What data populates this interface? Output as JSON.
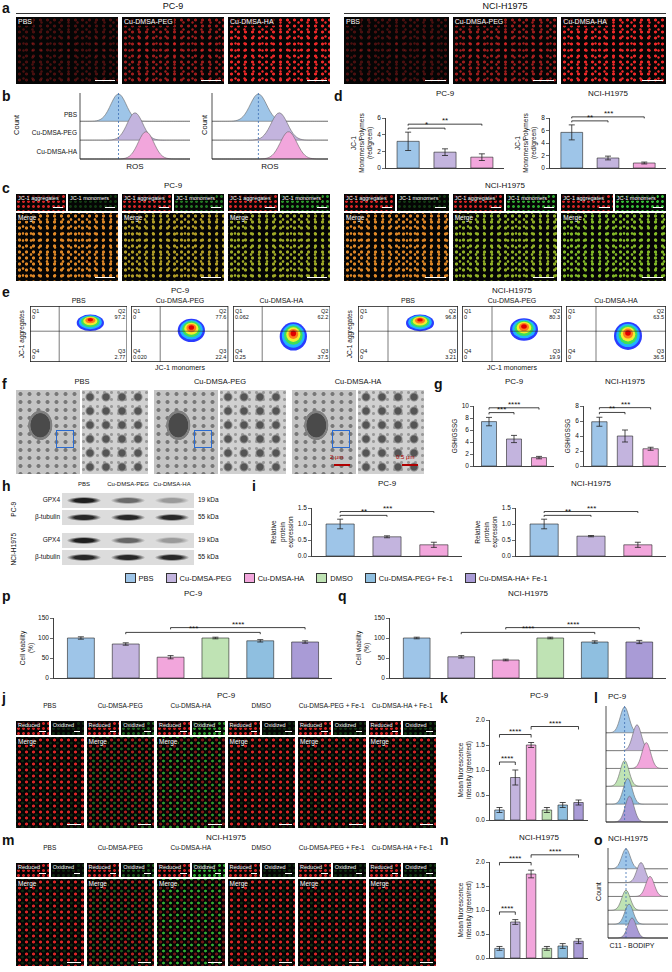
{
  "legend_key": [
    {
      "name": "PBS",
      "color": "#9ec5e8"
    },
    {
      "name": "Cu-DMSA-PEG",
      "color": "#c3b4de"
    },
    {
      "name": "Cu-DMSA-HA",
      "color": "#f2a6dc"
    },
    {
      "name": "DMSO",
      "color": "#bfe3b4"
    },
    {
      "name": "Cu-DMSA-PEG+ Fe-1",
      "color": "#8fbfe0"
    },
    {
      "name": "Cu-DMSA-HA+ Fe-1",
      "color": "#a99bd6"
    }
  ],
  "panels": {
    "a": {
      "letter": "a",
      "groups": [
        {
          "title": "PC-9",
          "images": [
            "PBS",
            "Cu-DMSA-PEG",
            "Cu-DMSA-HA"
          ]
        },
        {
          "title": "NCI-H1975",
          "images": [
            "PBS",
            "Cu-DMSA-PEG",
            "Cu-DMSA-HA"
          ]
        }
      ]
    },
    "b": {
      "letter": "b",
      "type": "ridgeline",
      "xlabel": "ROS",
      "ylabel": "Count",
      "plots": [
        {
          "curves": [
            {
              "name": "PBS",
              "color": "#9ec5e8",
              "peak": 0.35
            },
            {
              "name": "Cu-DMSA-PEG",
              "color": "#c3b4de",
              "peak": 0.5
            },
            {
              "name": "Cu-DMSA-HA",
              "color": "#f2a6dc",
              "peak": 0.6
            }
          ]
        },
        {
          "curves": [
            {
              "color": "#9ec5e8",
              "peak": 0.4
            },
            {
              "color": "#c3b4de",
              "peak": 0.58
            },
            {
              "color": "#f2a6dc",
              "peak": 0.66
            }
          ]
        }
      ]
    },
    "c": {
      "letter": "c",
      "channels": [
        "JC-1 aggregates",
        "JC-1 monomers"
      ],
      "merge": "Merge",
      "groups": [
        {
          "title": "PC-9",
          "images": 3
        },
        {
          "title": "NCI-H1975",
          "images": 3
        }
      ]
    },
    "e": {
      "letter": "e",
      "xlabel": "JC-1 monomers",
      "ylabel": "JC-1 aggregates",
      "groups": [
        {
          "title": "PC-9",
          "plots": [
            {
              "title": "PBS",
              "quadrants": [
                {
                  "label": "Q1",
                  "value": "0"
                },
                {
                  "label": "Q2",
                  "value": "97.2"
                },
                {
                  "label": "Q3",
                  "value": "2.77"
                },
                {
                  "label": "Q4",
                  "value": "0"
                }
              ]
            },
            {
              "title": "Cu-DMSA-PEG",
              "quadrants": [
                {
                  "label": "Q1",
                  "value": "0"
                },
                {
                  "label": "Q2",
                  "value": "77.6"
                },
                {
                  "label": "Q3",
                  "value": "22.4"
                },
                {
                  "label": "Q4",
                  "value": "0.020"
                }
              ]
            },
            {
              "title": "Cu-DMSA-HA",
              "quadrants": [
                {
                  "label": "Q1",
                  "value": "0.062"
                },
                {
                  "label": "Q2",
                  "value": "62.2"
                },
                {
                  "label": "Q3",
                  "value": "37.5"
                },
                {
                  "label": "Q4",
                  "value": "0.25"
                }
              ]
            }
          ]
        },
        {
          "title": "NCI-H1975",
          "plots": [
            {
              "title": "PBS",
              "quadrants": [
                {
                  "label": "Q1",
                  "value": "0"
                },
                {
                  "label": "Q2",
                  "value": "96.8"
                },
                {
                  "label": "Q3",
                  "value": "3.21"
                },
                {
                  "label": "Q4",
                  "value": "0"
                }
              ]
            },
            {
              "title": "Cu-DMSA-PEG",
              "quadrants": [
                {
                  "label": "Q1",
                  "value": "0"
                },
                {
                  "label": "Q2",
                  "value": "80.3"
                },
                {
                  "label": "Q3",
                  "value": "19.9"
                },
                {
                  "label": "Q4",
                  "value": "0"
                }
              ]
            },
            {
              "title": "Cu-DMSA-HA",
              "quadrants": [
                {
                  "label": "Q1",
                  "value": "0"
                },
                {
                  "label": "Q2",
                  "value": "63.5"
                },
                {
                  "label": "Q3",
                  "value": "36.5"
                },
                {
                  "label": "Q4",
                  "value": "0"
                }
              ]
            }
          ]
        }
      ]
    },
    "f": {
      "letter": "f",
      "images": [
        {
          "title": "PBS"
        },
        {
          "title": "Cu-DMSA-PEG"
        },
        {
          "title": "Cu-DMSA-HA",
          "scale_bars": [
            "2 μm",
            "0.5 μm"
          ]
        }
      ]
    },
    "h": {
      "letter": "h",
      "columns": [
        "PBS",
        "Cu-DMSA-PEG",
        "Cu-DMSA-HA"
      ],
      "groups": [
        {
          "title": "PC-9",
          "rows": [
            {
              "label": "GPX4",
              "size": "19 kDa"
            },
            {
              "label": "β-tubulin",
              "size": "55 kDa"
            }
          ]
        },
        {
          "title": "NCI-H1975",
          "rows": [
            {
              "label": "GPX4",
              "size": "19 kDa"
            },
            {
              "label": "β-tubulin",
              "size": "55 kDa"
            }
          ]
        }
      ]
    },
    "j": {
      "letter": "j",
      "title": "PC-9",
      "channels": [
        "Reduced",
        "Oxidized"
      ],
      "merge": "Merge",
      "conditions": [
        "PBS",
        "Cu-DMSA-PEG",
        "Cu-DMSA-HA",
        "DMSO",
        "Cu-DMSA-PEG + Fe-1",
        "Cu-DMSA-HA + Fe-1"
      ]
    },
    "m": {
      "letter": "m",
      "title": "NCI-H1975",
      "channels": [
        "Reduced",
        "Oxidized"
      ],
      "merge": "Merge",
      "conditions": [
        "PBS",
        "Cu-DMSA-PEG",
        "Cu-DMSA-HA",
        "DMSO",
        "Cu-DMSA-PEG + Fe-1",
        "Cu-DMSA-HA + Fe-1"
      ]
    },
    "l": {
      "letter": "l",
      "type": "ridgeline",
      "title": "PC-9",
      "curves": [
        {
          "color": "#9ec5e8",
          "peak": 0.3
        },
        {
          "color": "#c3b4de",
          "peak": 0.5
        },
        {
          "color": "#f2a6dc",
          "peak": 0.65
        },
        {
          "color": "#bfe3b4",
          "peak": 0.3
        },
        {
          "color": "#8fbfe0",
          "peak": 0.35
        },
        {
          "color": "#a99bd6",
          "peak": 0.38
        }
      ]
    },
    "o": {
      "letter": "o",
      "type": "ridgeline",
      "title": "NCI-H1975",
      "xlabel": "C11 - BODIPY",
      "ylabel": "Count",
      "curves": [
        {
          "color": "#9ec5e8",
          "peak": 0.3
        },
        {
          "color": "#c3b4de",
          "peak": 0.55
        },
        {
          "color": "#f2a6dc",
          "peak": 0.7
        },
        {
          "color": "#bfe3b4",
          "peak": 0.3
        },
        {
          "color": "#8fbfe0",
          "peak": 0.35
        },
        {
          "color": "#a99bd6",
          "peak": 0.4
        }
      ]
    }
  },
  "chart_data": [
    {
      "panel": "d",
      "type": "bar",
      "title": "PC-9",
      "ylabel": "JC-1 Monomers/Polymers (red/green)",
      "categories": [
        "PBS",
        "Cu-DMSA-PEG",
        "Cu-DMSA-HA"
      ],
      "values": [
        3.2,
        1.9,
        1.3
      ],
      "errors": [
        1.1,
        0.4,
        0.4
      ],
      "colors": [
        "#9ec5e8",
        "#c3b4de",
        "#f2a6dc"
      ],
      "ylim": [
        0,
        6
      ],
      "yticks": [
        0,
        2,
        4,
        6
      ],
      "tick_labels": "y",
      "significance": [
        {
          "from": 0,
          "to": 1,
          "text": "*"
        },
        {
          "from": 0,
          "to": 2,
          "text": "**"
        }
      ]
    },
    {
      "panel": "d",
      "type": "bar",
      "title": "NCI-H1975",
      "ylabel": "JC-1 Monomers/Polymers (red/green)",
      "categories": [
        "PBS",
        "Cu-DMSA-PEG",
        "Cu-DMSA-HA"
      ],
      "values": [
        5.7,
        1.6,
        0.8
      ],
      "errors": [
        1.2,
        0.3,
        0.15
      ],
      "colors": [
        "#9ec5e8",
        "#c3b4de",
        "#f2a6dc"
      ],
      "ylim": [
        0,
        8
      ],
      "yticks": [
        0,
        2,
        4,
        6,
        8
      ],
      "tick_labels": "y",
      "significance": [
        {
          "from": 0,
          "to": 1,
          "text": "**"
        },
        {
          "from": 0,
          "to": 2,
          "text": "***"
        }
      ]
    },
    {
      "panel": "g",
      "type": "bar",
      "title": "PC-9",
      "ylabel": "GSH/GSSG",
      "categories": [
        "PBS",
        "Cu-DMSA-PEG",
        "Cu-DMSA-HA"
      ],
      "values": [
        7.4,
        4.5,
        1.4
      ],
      "errors": [
        0.7,
        0.6,
        0.2
      ],
      "colors": [
        "#9ec5e8",
        "#c3b4de",
        "#f2a6dc"
      ],
      "ylim": [
        0,
        10
      ],
      "yticks": [
        0,
        2,
        4,
        6,
        8,
        10
      ],
      "tick_labels": "y",
      "significance": [
        {
          "from": 0,
          "to": 1,
          "text": "***"
        },
        {
          "from": 0,
          "to": 2,
          "text": "****"
        }
      ]
    },
    {
      "panel": "g",
      "type": "bar",
      "title": "NCI-H1975",
      "ylabel": "GSH/GSSG",
      "categories": [
        "PBS",
        "Cu-DMSA-PEG",
        "Cu-DMSA-HA"
      ],
      "values": [
        5.9,
        4.0,
        2.3
      ],
      "errors": [
        0.6,
        0.8,
        0.2
      ],
      "colors": [
        "#9ec5e8",
        "#c3b4de",
        "#f2a6dc"
      ],
      "ylim": [
        0,
        8
      ],
      "yticks": [
        0,
        2,
        4,
        6,
        8
      ],
      "tick_labels": "y",
      "significance": [
        {
          "from": 0,
          "to": 1,
          "text": "**"
        },
        {
          "from": 0,
          "to": 2,
          "text": "***"
        }
      ]
    },
    {
      "panel": "i",
      "type": "bar",
      "title": "PC-9",
      "ylabel": "Relative protein expression",
      "categories": [
        "PBS",
        "Cu-DMSA-PEG",
        "Cu-DMSA-HA"
      ],
      "values": [
        1.0,
        0.6,
        0.35
      ],
      "errors": [
        0.15,
        0.03,
        0.08
      ],
      "colors": [
        "#9ec5e8",
        "#c3b4de",
        "#f2a6dc"
      ],
      "ylim": [
        0,
        1.5
      ],
      "yticks": [
        {
          "value": 0,
          "label": "0.0"
        },
        0.5,
        {
          "value": 1,
          "label": "1.0"
        },
        1.5
      ],
      "tick_labels": "y",
      "significance": [
        {
          "from": 0,
          "to": 1,
          "text": "**"
        },
        {
          "from": 0,
          "to": 2,
          "text": "***"
        }
      ]
    },
    {
      "panel": "i",
      "type": "bar",
      "title": "NCI-H1975",
      "ylabel": "Relative protein expression",
      "categories": [
        "PBS",
        "Cu-DMSA-PEG",
        "Cu-DMSA-HA"
      ],
      "values": [
        1.0,
        0.62,
        0.35
      ],
      "errors": [
        0.15,
        0.02,
        0.08
      ],
      "colors": [
        "#9ec5e8",
        "#c3b4de",
        "#f2a6dc"
      ],
      "ylim": [
        0,
        1.5
      ],
      "yticks": [
        {
          "value": 0,
          "label": "0.0"
        },
        0.5,
        {
          "value": 1,
          "label": "1.0"
        },
        1.5
      ],
      "tick_labels": "y",
      "significance": [
        {
          "from": 0,
          "to": 1,
          "text": "**"
        },
        {
          "from": 0,
          "to": 2,
          "text": "***"
        }
      ]
    },
    {
      "panel": "p",
      "type": "bar",
      "title": "PC-9",
      "ylabel": "Cell viability (%)",
      "categories": [
        "PBS",
        "Cu-DMSA-PEG",
        "Cu-DMSA-HA",
        "DMSO",
        "Cu-DMSA-PEG+ Fe-1",
        "Cu-DMSA-HA+ Fe-1"
      ],
      "values": [
        100,
        85,
        52,
        100,
        93,
        90
      ],
      "errors": [
        3,
        3,
        4,
        2,
        3,
        3
      ],
      "colors": [
        "#9ec5e8",
        "#c3b4de",
        "#f2a6dc",
        "#bfe3b4",
        "#8fbfe0",
        "#a99bd6"
      ],
      "ylim": [
        0,
        150
      ],
      "yticks": [
        0,
        50,
        100,
        150
      ],
      "tick_labels": "y",
      "significance": [
        {
          "from": 1,
          "to": 4,
          "text": "***"
        },
        {
          "from": 2,
          "to": 5,
          "text": "****"
        }
      ]
    },
    {
      "panel": "q",
      "type": "bar",
      "title": "NCI-H1975",
      "ylabel": "Cell viability (%)",
      "categories": [
        "PBS",
        "Cu-DMSA-PEG",
        "Cu-DMSA-HA",
        "DMSO",
        "Cu-DMSA-PEG+ Fe-1",
        "Cu-DMSA-HA+ Fe-1"
      ],
      "values": [
        100,
        53,
        45,
        100,
        90,
        90
      ],
      "errors": [
        2,
        3,
        2,
        2,
        3,
        4
      ],
      "colors": [
        "#9ec5e8",
        "#c3b4de",
        "#f2a6dc",
        "#bfe3b4",
        "#8fbfe0",
        "#a99bd6"
      ],
      "ylim": [
        0,
        150
      ],
      "yticks": [
        0,
        50,
        100,
        150
      ],
      "tick_labels": "y",
      "significance": [
        {
          "from": 1,
          "to": 4,
          "text": "****"
        },
        {
          "from": 2,
          "to": 5,
          "text": "****"
        }
      ]
    },
    {
      "panel": "k",
      "type": "bar",
      "title": "PC-9",
      "ylabel": "Mean fluorescence intensity (green/red)",
      "categories": [
        "PBS",
        "Cu-DMSA-PEG",
        "Cu-DMSA-HA",
        "DMSO",
        "Cu-DMSA-PEG+ Fe-1",
        "Cu-DMSA-HA+ Fe-1"
      ],
      "values": [
        0.2,
        0.85,
        1.5,
        0.2,
        0.3,
        0.35
      ],
      "errors": [
        0.05,
        0.15,
        0.05,
        0.05,
        0.05,
        0.05
      ],
      "colors": [
        "#9ec5e8",
        "#c3b4de",
        "#f2a6dc",
        "#bfe3b4",
        "#8fbfe0",
        "#a99bd6"
      ],
      "ylim": [
        0,
        2
      ],
      "yticks": [
        {
          "value": 0,
          "label": "0.0"
        },
        0.5,
        {
          "value": 1,
          "label": "1.0"
        },
        1.5,
        {
          "value": 2,
          "label": "2.0"
        }
      ],
      "tick_labels": "y",
      "significance": [
        {
          "from": 0,
          "to": 1,
          "text": "****"
        },
        {
          "from": 0,
          "to": 2,
          "text": "****"
        },
        {
          "from": 2,
          "to": 5,
          "text": "****"
        }
      ]
    },
    {
      "panel": "n",
      "type": "bar",
      "title": "NCI-H1975",
      "ylabel": "Mean fluorescence intensity (green/red)",
      "categories": [
        "PBS",
        "Cu-DMSA-PEG",
        "Cu-DMSA-HA",
        "DMSO",
        "Cu-DMSA-PEG+ Fe-1",
        "Cu-DMSA-HA+ Fe-1"
      ],
      "values": [
        0.2,
        0.75,
        1.75,
        0.2,
        0.25,
        0.35
      ],
      "errors": [
        0.04,
        0.05,
        0.08,
        0.04,
        0.05,
        0.05
      ],
      "colors": [
        "#9ec5e8",
        "#c3b4de",
        "#f2a6dc",
        "#bfe3b4",
        "#8fbfe0",
        "#a99bd6"
      ],
      "ylim": [
        0,
        2
      ],
      "yticks": [
        {
          "value": 0,
          "label": "0.0"
        },
        0.5,
        {
          "value": 1,
          "label": "1.0"
        },
        1.5,
        {
          "value": 2,
          "label": "2.0"
        }
      ],
      "tick_labels": "y",
      "significance": [
        {
          "from": 0,
          "to": 1,
          "text": "****"
        },
        {
          "from": 0,
          "to": 2,
          "text": "****"
        },
        {
          "from": 2,
          "to": 5,
          "text": "****"
        }
      ]
    }
  ]
}
